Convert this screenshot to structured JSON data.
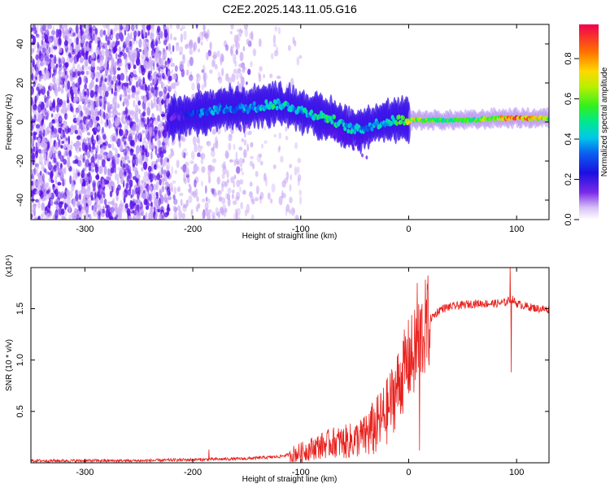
{
  "title": "C2E2.2025.143.11.05.G16",
  "colors": {
    "snr_line": "#e8201c",
    "noise_dark": "#5a10e8",
    "noise_light": "#c9a8f4",
    "axis": "#000000"
  },
  "chart_data": [
    {
      "type": "heatmap",
      "name": "spectrogram",
      "xlabel": "Height of straight line (km)",
      "ylabel": "Frequency (Hz)",
      "xlim": [
        -350,
        130
      ],
      "ylim": [
        -50,
        50
      ],
      "xticks": [
        -300,
        -200,
        -100,
        0,
        100
      ],
      "yticks": [
        -40,
        -20,
        0,
        20,
        40
      ],
      "colorbar": {
        "label": "Normalized spectral amplitude",
        "range": [
          0,
          0.97
        ],
        "ticks": [
          "0.0",
          "0.2",
          "0.4",
          "0.6",
          "0.8"
        ],
        "tick_values": [
          0.0,
          0.2,
          0.4,
          0.6,
          0.8
        ]
      },
      "ridge": {
        "x": [
          -220,
          -210,
          -200,
          -190,
          -180,
          -170,
          -160,
          -150,
          -140,
          -130,
          -120,
          -110,
          -100,
          -90,
          -80,
          -70,
          -60,
          -50,
          -40,
          -30,
          -20,
          -10,
          0,
          20,
          40,
          60,
          80,
          100,
          130
        ],
        "freq_hz": [
          2,
          3,
          4,
          5,
          6,
          7,
          7,
          7,
          8,
          9,
          9,
          8,
          6,
          4,
          3,
          1,
          -2,
          -4,
          -3,
          -1,
          0,
          1,
          1,
          1,
          1,
          1,
          2,
          2,
          2
        ],
        "amplitude": [
          0.15,
          0.2,
          0.3,
          0.35,
          0.4,
          0.35,
          0.35,
          0.4,
          0.45,
          0.5,
          0.5,
          0.45,
          0.45,
          0.45,
          0.5,
          0.5,
          0.45,
          0.45,
          0.4,
          0.4,
          0.45,
          0.6,
          0.7,
          0.6,
          0.55,
          0.55,
          0.7,
          0.9,
          0.6
        ]
      }
    },
    {
      "type": "line",
      "name": "snr",
      "xlabel": "Height of straight line (km)",
      "ylabel": "SNR (10 * v/v)",
      "multiplier": "(x10⁴)",
      "xlim": [
        -350,
        130
      ],
      "ylim": [
        0,
        1.9
      ],
      "xticks": [
        -300,
        -200,
        -100,
        0,
        100
      ],
      "yticks": [
        0.5,
        1.0,
        1.5
      ],
      "ytick_labels": [
        "0.5",
        "1.0",
        "1.5"
      ],
      "x": [
        -350,
        -300,
        -250,
        -200,
        -150,
        -120,
        -100,
        -90,
        -80,
        -70,
        -60,
        -50,
        -40,
        -30,
        -20,
        -10,
        0,
        5,
        10,
        20,
        30,
        40,
        60,
        80,
        90,
        95,
        100,
        110,
        120,
        130
      ],
      "y": [
        0.02,
        0.02,
        0.02,
        0.03,
        0.04,
        0.06,
        0.1,
        0.14,
        0.17,
        0.2,
        0.2,
        0.22,
        0.27,
        0.35,
        0.5,
        0.75,
        1.0,
        1.05,
        1.2,
        1.4,
        1.5,
        1.52,
        1.55,
        1.55,
        1.56,
        1.6,
        1.55,
        1.52,
        1.5,
        1.49
      ],
      "spikes": [
        {
          "x": -185,
          "y": 0.13
        },
        {
          "x": 8,
          "y": 1.75
        },
        {
          "x": 10,
          "y": 0.12
        },
        {
          "x": 94,
          "y": 1.92
        },
        {
          "x": 95,
          "y": 0.88
        }
      ]
    }
  ]
}
